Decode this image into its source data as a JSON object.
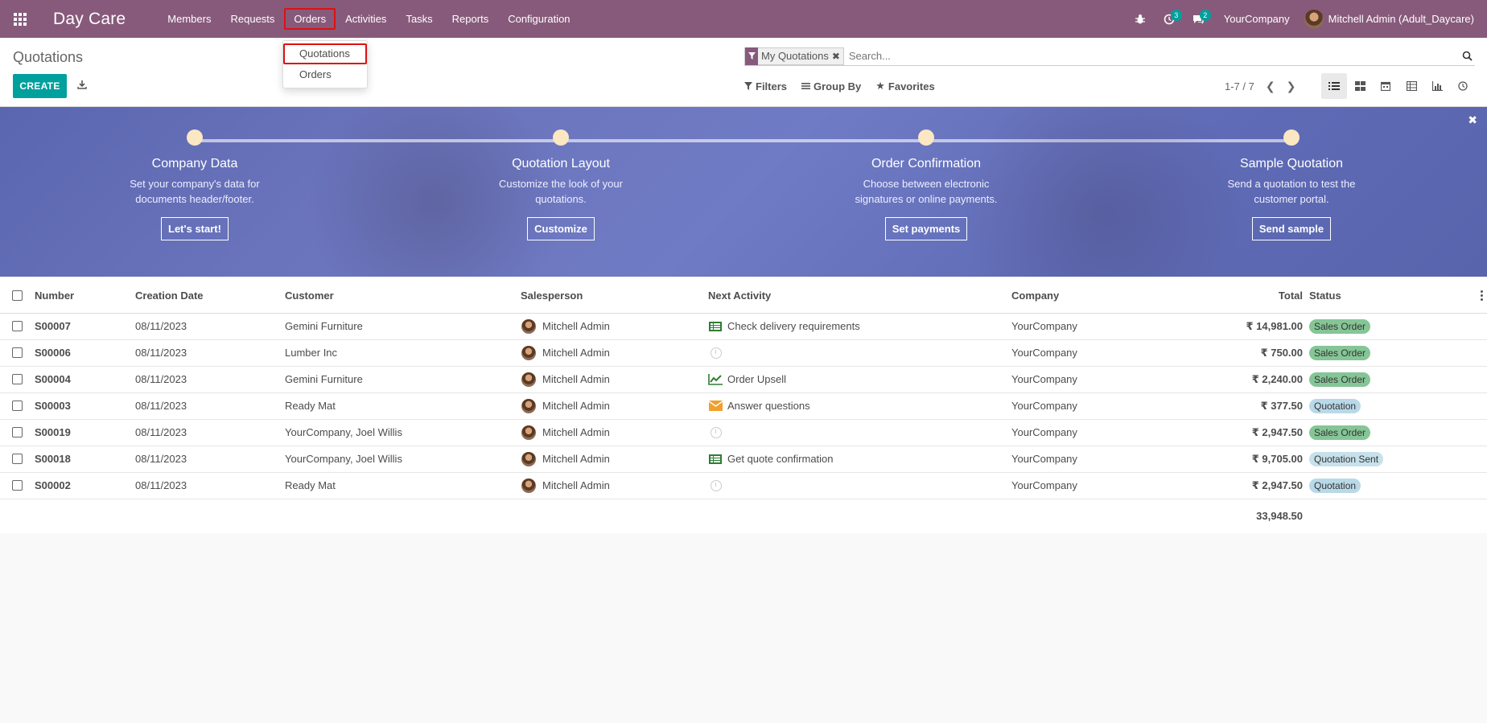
{
  "navbar": {
    "brand": "Day Care",
    "menu": [
      "Members",
      "Requests",
      "Orders",
      "Activities",
      "Tasks",
      "Reports",
      "Configuration"
    ],
    "activity_count": "3",
    "message_count": "2",
    "company": "YourCompany",
    "user": "Mitchell Admin (Adult_Daycare)"
  },
  "dropdown": {
    "items": [
      "Quotations",
      "Orders"
    ]
  },
  "control_panel": {
    "breadcrumb": "Quotations",
    "create_label": "CREATE",
    "search_facet": "My Quotations",
    "search_placeholder": "Search...",
    "filters_label": "Filters",
    "groupby_label": "Group By",
    "favorites_label": "Favorites",
    "pager": "1-7 / 7"
  },
  "banner": {
    "steps": [
      {
        "title": "Company Data",
        "desc1": "Set your company's data for",
        "desc2": "documents header/footer.",
        "button": "Let's start!"
      },
      {
        "title": "Quotation Layout",
        "desc1": "Customize the look of your",
        "desc2": "quotations.",
        "button": "Customize"
      },
      {
        "title": "Order Confirmation",
        "desc1": "Choose between electronic",
        "desc2": "signatures or online payments.",
        "button": "Set payments"
      },
      {
        "title": "Sample Quotation",
        "desc1": "Send a quotation to test the",
        "desc2": "customer portal.",
        "button": "Send sample"
      }
    ]
  },
  "table": {
    "headers": [
      "Number",
      "Creation Date",
      "Customer",
      "Salesperson",
      "Next Activity",
      "Company",
      "Total",
      "Status"
    ],
    "rows": [
      {
        "number": "S00007",
        "date": "08/11/2023",
        "customer": "Gemini Furniture",
        "salesperson": "Mitchell Admin",
        "activity_icon": "todo-list-icon",
        "activity": "Check delivery requirements",
        "company": "YourCompany",
        "total": "₹ 14,981.00",
        "status": "Sales Order",
        "status_kind": "sales"
      },
      {
        "number": "S00006",
        "date": "08/11/2023",
        "customer": "Lumber Inc",
        "salesperson": "Mitchell Admin",
        "activity_icon": "clock-icon",
        "activity": "",
        "company": "YourCompany",
        "total": "₹ 750.00",
        "status": "Sales Order",
        "status_kind": "sales"
      },
      {
        "number": "S00004",
        "date": "08/11/2023",
        "customer": "Gemini Furniture",
        "salesperson": "Mitchell Admin",
        "activity_icon": "upsell-chart-icon",
        "activity": "Order Upsell",
        "company": "YourCompany",
        "total": "₹ 2,240.00",
        "status": "Sales Order",
        "status_kind": "sales"
      },
      {
        "number": "S00003",
        "date": "08/11/2023",
        "customer": "Ready Mat",
        "salesperson": "Mitchell Admin",
        "activity_icon": "envelope-icon",
        "activity": "Answer questions",
        "company": "YourCompany",
        "total": "₹ 377.50",
        "status": "Quotation",
        "status_kind": "quote"
      },
      {
        "number": "S00019",
        "date": "08/11/2023",
        "customer": "YourCompany, Joel Willis",
        "salesperson": "Mitchell Admin",
        "activity_icon": "clock-icon",
        "activity": "",
        "company": "YourCompany",
        "total": "₹ 2,947.50",
        "status": "Sales Order",
        "status_kind": "sales"
      },
      {
        "number": "S00018",
        "date": "08/11/2023",
        "customer": "YourCompany, Joel Willis",
        "salesperson": "Mitchell Admin",
        "activity_icon": "todo-list-icon",
        "activity": "Get quote confirmation",
        "company": "YourCompany",
        "total": "₹ 9,705.00",
        "status": "Quotation Sent",
        "status_kind": "sent"
      },
      {
        "number": "S00002",
        "date": "08/11/2023",
        "customer": "Ready Mat",
        "salesperson": "Mitchell Admin",
        "activity_icon": "clock-icon",
        "activity": "",
        "company": "YourCompany",
        "total": "₹ 2,947.50",
        "status": "Quotation",
        "status_kind": "quote"
      }
    ],
    "sum_total": "33,948.50"
  },
  "colors": {
    "navbar": "#875a7b",
    "create_button": "#00a09d",
    "badge_sales": "#85c596",
    "badge_quote": "#b9d9e8",
    "active_highlight": "#dd1111"
  }
}
